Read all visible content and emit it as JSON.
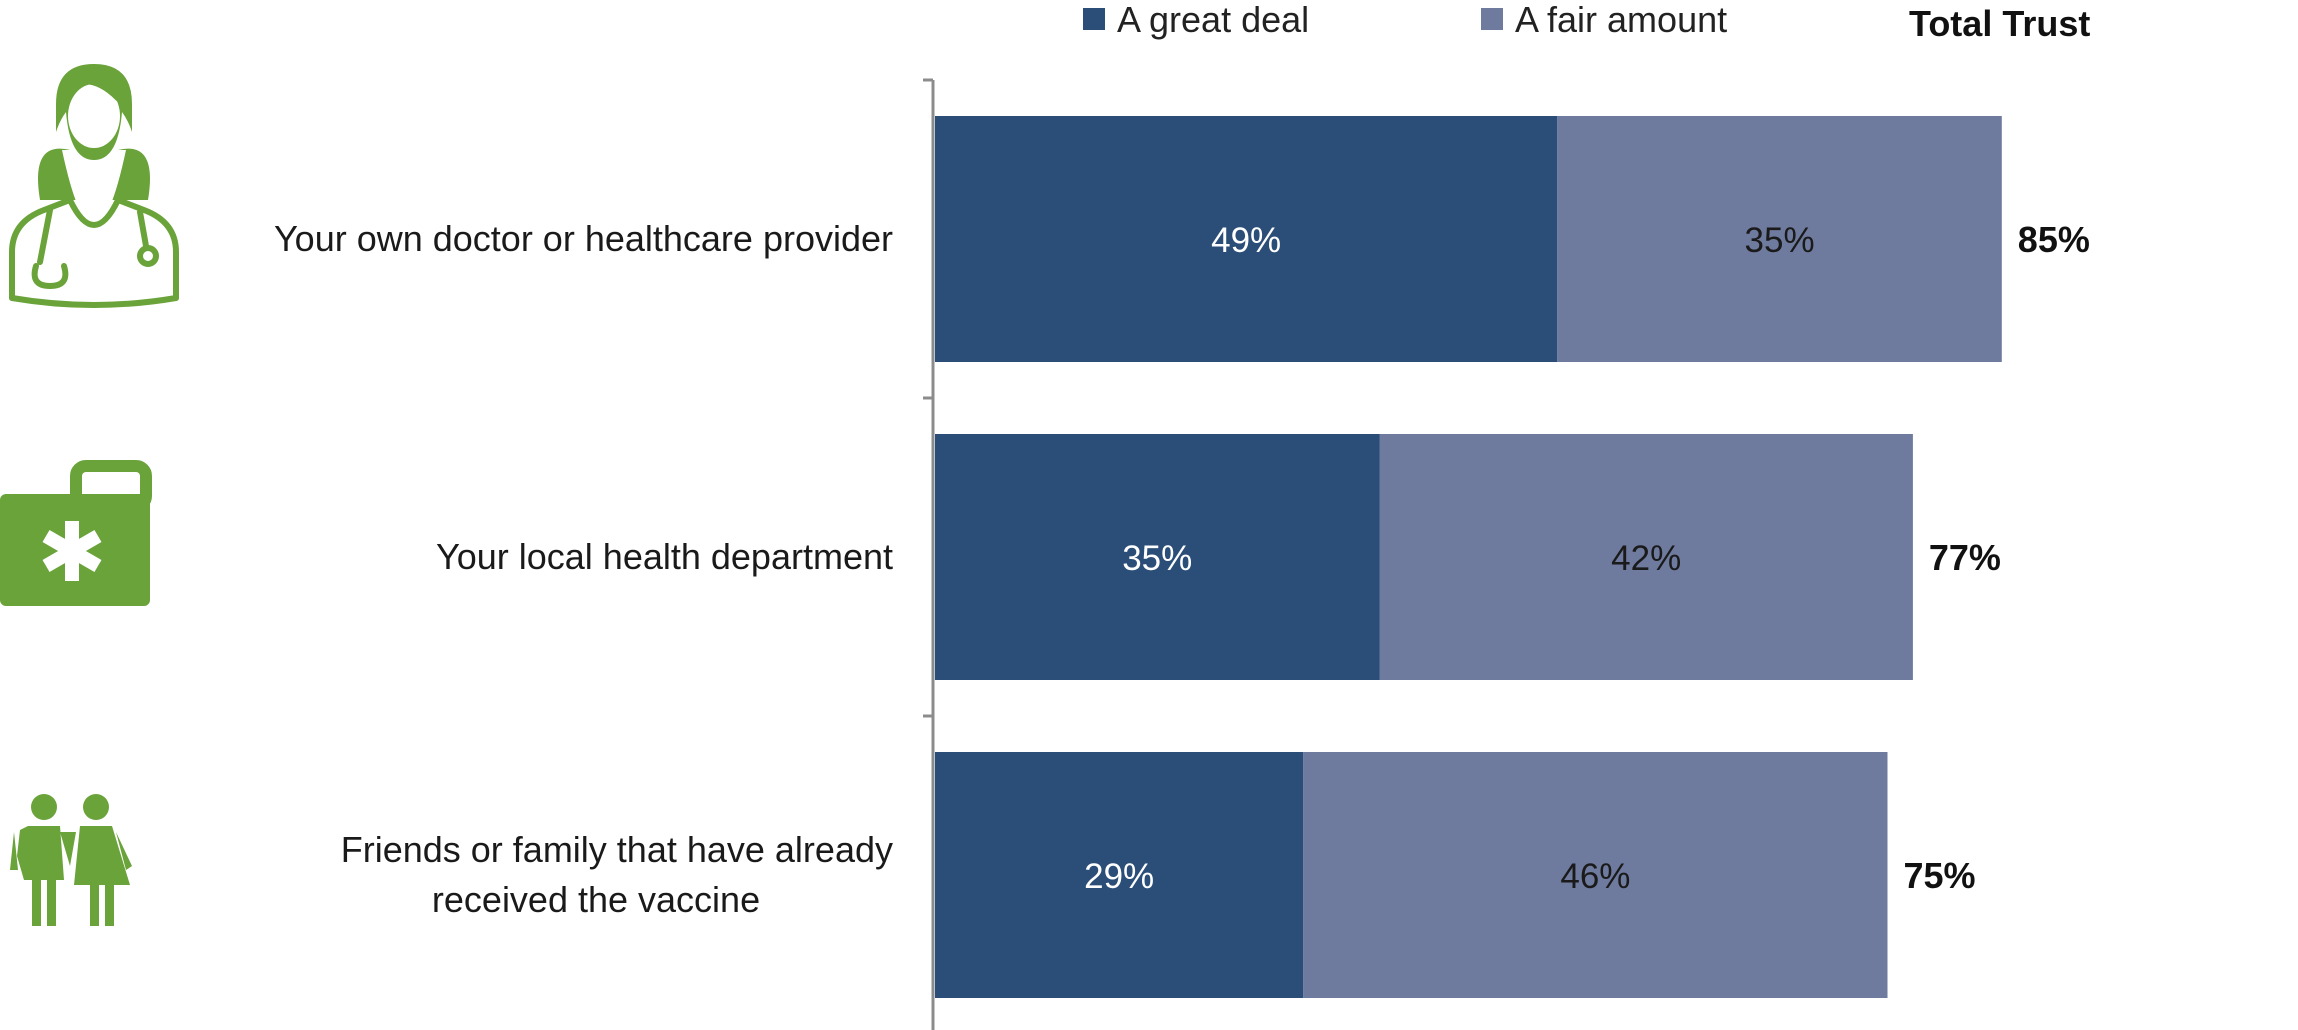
{
  "chart_data": {
    "type": "bar",
    "orientation": "horizontal",
    "stacked": true,
    "categories": [
      [
        "Your own doctor or healthcare provider"
      ],
      [
        "Your local health department"
      ],
      [
        "Friends or family that have already",
        "received the vaccine"
      ]
    ],
    "series": [
      {
        "name": "A great deal",
        "values": [
          49,
          35,
          29
        ],
        "color": "#2b4e78",
        "label_color": "#ffffff"
      },
      {
        "name": "A fair amount",
        "values": [
          35,
          42,
          46
        ],
        "color": "#6e7b9e",
        "label_color": "#1a1a1a"
      }
    ],
    "totals": [
      85,
      77,
      75
    ],
    "totals_label": "Total Trust",
    "value_suffix": "%",
    "xlim": [
      0,
      100
    ],
    "grid": false,
    "legend_position": "top",
    "icons": [
      "doctor-icon",
      "medical-kit-icon",
      "family-icon"
    ],
    "icon_color": "#6aa339"
  }
}
